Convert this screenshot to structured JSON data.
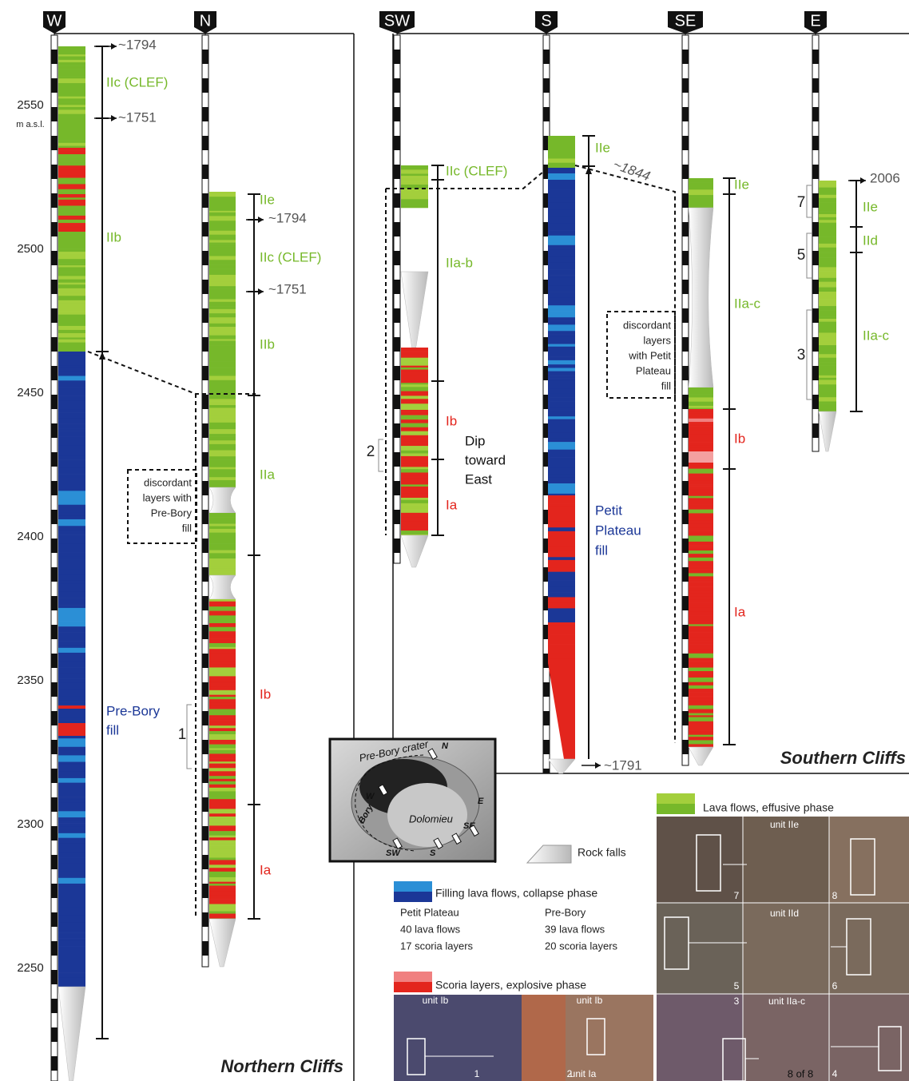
{
  "axis": {
    "ticks": [
      2550,
      2500,
      2450,
      2400,
      2350,
      2300,
      2250
    ],
    "unit": "m a.s.l."
  },
  "columns": [
    "W",
    "N",
    "SW",
    "S",
    "SE",
    "E"
  ],
  "colors": {
    "effusive": "#76b82a",
    "effusive_light": "#a3cf3c",
    "explosive": "#e3251d",
    "collapse": "#1b3797",
    "collapse_light": "#2b8fd6"
  },
  "labels": [
    "IIc (CLEF)",
    "~1794",
    "~1751",
    "IIb",
    "Pre-Bory",
    "fill",
    "IIe",
    "~1794",
    "IIc (CLEF)",
    "~1751",
    "IIb",
    "IIa",
    "Ib",
    "Ia",
    "IIc (CLEF)",
    "IIa-b",
    "Ib",
    "Ia",
    "Dip",
    "toward",
    "East",
    "IIe",
    "~1844",
    "Petit",
    "Plateau",
    "fill",
    "~1791",
    "IIe",
    "IIa-c",
    "Ib",
    "Ia",
    "2006",
    "IIe",
    "IId",
    "IIa-c"
  ],
  "notes": [
    [
      "discordant",
      "layers with",
      "Pre-Bory",
      "fill"
    ],
    [
      "discordant",
      "layers",
      "with Petit",
      "Plateau",
      "fill"
    ]
  ],
  "photo_refs": [
    "1",
    "2",
    "7",
    "5",
    "3"
  ],
  "titles": [
    "Northern Cliffs",
    "Southern Cliffs"
  ],
  "map": {
    "labels": [
      "Pre-Bory crater",
      "N",
      "W",
      "Bory",
      "Dolomieu",
      "E",
      "SE",
      "S",
      "SW"
    ]
  },
  "legend": {
    "effusive": "Lava flows, effusive phase",
    "rockfall": "Rock falls",
    "collapse": "Filling lava flows, collapse phase",
    "table": [
      [
        "Petit Plateau",
        "Pre-Bory"
      ],
      [
        "40 lava flows",
        "39 lava flows"
      ],
      [
        "17 scoria layers",
        "20 scoria layers"
      ]
    ],
    "explosive": "Scoria layers, explosive phase"
  },
  "photos": {
    "labels": [
      "unit Ib",
      "unit Ib",
      "unit Ia",
      "1",
      "2",
      "unit IIe",
      "7",
      "8",
      "unit IId",
      "5",
      "6",
      "unit IIa-c",
      "3",
      "8 of 8",
      "4"
    ]
  }
}
